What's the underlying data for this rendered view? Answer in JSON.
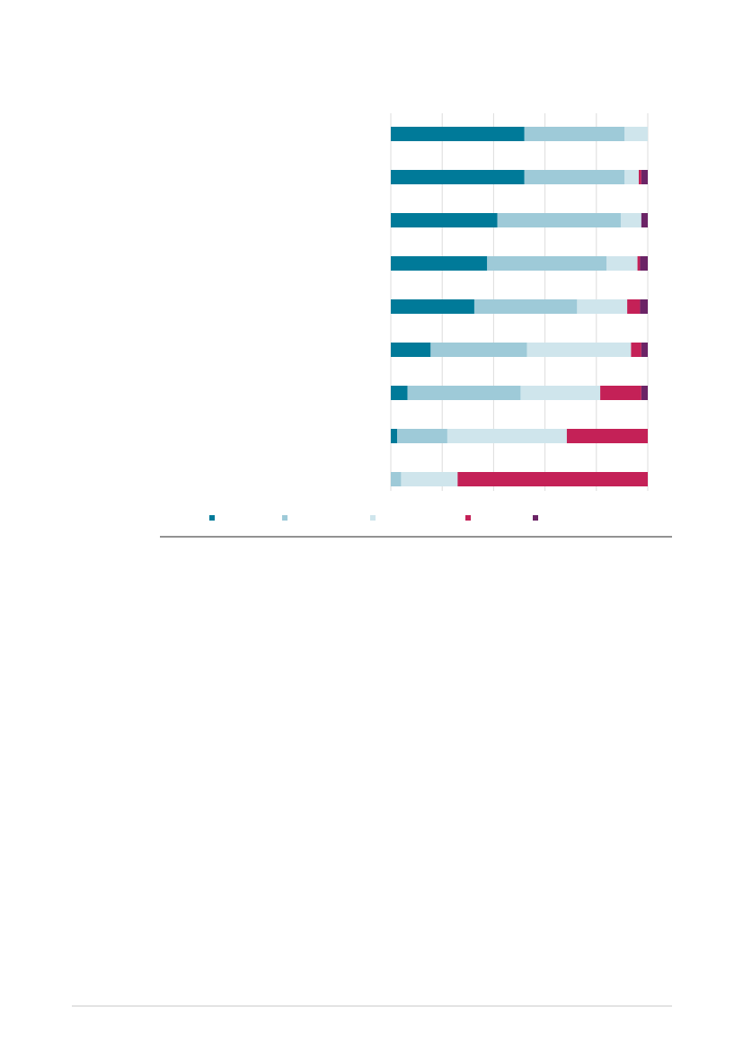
{
  "chart_data": {
    "type": "bar",
    "orientation": "horizontal",
    "stacked": true,
    "percent_stacked": true,
    "title": "",
    "xlabel": "",
    "ylabel": "",
    "xlim": [
      0,
      100
    ],
    "grid": true,
    "legend_position": "bottom",
    "categories": [
      "",
      "",
      "",
      "",
      "",
      "",
      "",
      "",
      ""
    ],
    "series": [
      {
        "color": "#007a99",
        "values": [
          52,
          52,
          41.5,
          37.5,
          32.5,
          15.5,
          6.5,
          2.5,
          0
        ]
      },
      {
        "color": "#9ecad8",
        "values": [
          39,
          39,
          48,
          46.5,
          40,
          37.5,
          44,
          19.5,
          4
        ]
      },
      {
        "color": "#cfe5ec",
        "values": [
          9,
          5.5,
          8,
          12,
          19.5,
          40.5,
          31,
          46.5,
          22
        ]
      },
      {
        "color": "#c42157",
        "values": [
          0,
          1,
          0,
          1,
          5,
          4,
          16,
          31.5,
          74
        ]
      },
      {
        "color": "#6b2466",
        "values": [
          0,
          2.5,
          2.5,
          3,
          3,
          2.5,
          2.5,
          0,
          0
        ]
      }
    ]
  }
}
